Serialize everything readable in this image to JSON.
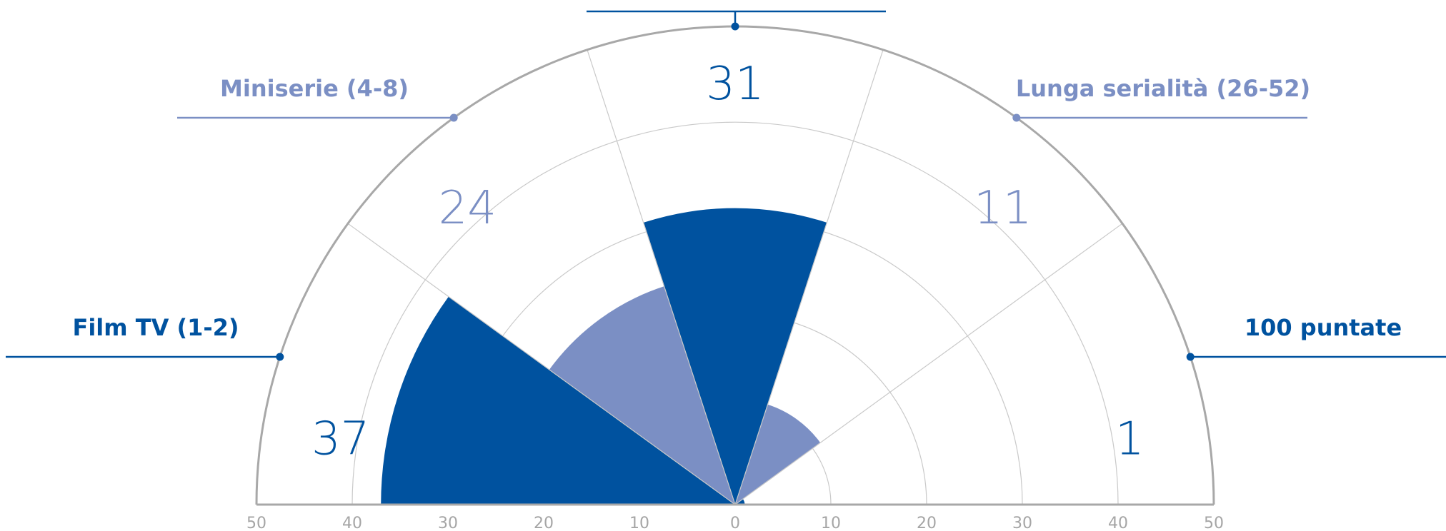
{
  "chart_data": {
    "type": "polar-area",
    "title": "",
    "radial_axis": {
      "range": [
        0,
        50
      ],
      "ticks": [
        50,
        40,
        30,
        20,
        10,
        0,
        10,
        20,
        30,
        40,
        50
      ],
      "tick_labels": [
        "50",
        "40",
        "30",
        "20",
        "10",
        "0",
        "10",
        "20",
        "30",
        "40",
        "50"
      ]
    },
    "categories": [
      "Film TV (1-2)",
      "Miniserie (4-8)",
      "",
      "Lunga serialità (26-52)",
      "100 puntate"
    ],
    "series": [
      {
        "values": [
          37,
          24,
          31,
          11,
          1
        ],
        "value_labels": [
          "37",
          "24",
          "31",
          "11",
          "1"
        ],
        "colors": [
          "#00529f",
          "#7b8fc4",
          "#00529f",
          "#7b8fc4",
          "#00529f"
        ]
      }
    ],
    "grid": true,
    "legend": "none",
    "colors": {
      "dark": "#00529f",
      "light": "#7b8fc4",
      "grid": "#c9c9c9",
      "axis": "#a8a8a8",
      "tick_text": "#a5a5a5"
    }
  }
}
